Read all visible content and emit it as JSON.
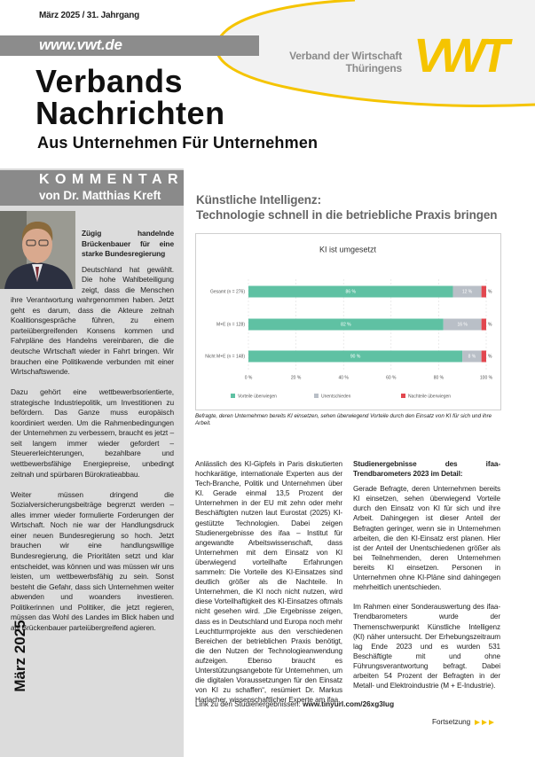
{
  "header": {
    "issue": "März 2025 / 31. Jahrgang",
    "url": "www.vwt.de",
    "title_line1": "Verbands",
    "title_line2": "Nachrichten",
    "subtitle": "Aus Unternehmen Für Unternehmen",
    "org_line1": "Verband der Wirtschaft",
    "org_line2": "Thüringens",
    "logo": "VWT"
  },
  "commentary": {
    "label": "KOMMENTAR",
    "author": "von Dr. Matthias Kreft",
    "headline": "Zügig handelnde Brückenbauer für eine starke Bundesregierung",
    "paragraphs": [
      "Deutschland hat gewählt. Die hohe Wahlbeteiligung zeigt, dass die Menschen ihre Verantwortung wahrgenommen haben. Jetzt geht es darum, dass die Akteure zeitnah Koalitionsgespräche führen, zu einem parteiübergreifenden Konsens kommen und Fahrpläne des Handelns vereinbaren, die die deutsche Wirtschaft wieder in Fahrt bringen. Wir brauchen eine Politikwende verbunden mit einer Wirtschaftswende.",
      "Dazu gehört eine wettbewerbsorientierte, strategische Industriepolitik, um Investitionen zu befördern. Das Ganze muss europäisch koordiniert werden. Um die Rahmenbedingungen der Unternehmen zu verbessern, braucht es jetzt – seit langem immer wieder gefordert – Steuererleichterungen, bezahlbare und wettbewerbsfähige Energiepreise, unbedingt zeitnah und spürbaren Bürokratieabbau.",
      "Weiter müssen dringend die Sozialversicherungsbeiträge begrenzt werden – alles immer wieder formulierte Forderungen der Wirtschaft. Noch nie war der Handlungsdruck einer neuen Bundesregierung so hoch. Jetzt brauchen wir eine handlungswillige Bundesregierung, die Prioritäten setzt und klar entscheidet, was können und was müssen wir uns leisten, um wettbewerbsfähig zu sein. Sonst besteht die Gefahr, dass sich Unternehmen weiter abwenden und woanders investieren. Politikerinnen und Politiker, die jetzt regieren, müssen das Wohl des Landes im Blick haben und als Brückenbauer parteiübergreifend agieren."
    ],
    "side_date": "März 2025"
  },
  "article": {
    "title_line1": "Künstliche Intelligenz:",
    "title_line2": "Technologie schnell in die betriebliche Praxis bringen",
    "caption": "Befragte, deren Unternehmen bereits KI einsetzen, sehen überwiegend Vorteile durch den Einsatz von KI für sich und ihre Arbeit.",
    "column1": [
      "Anlässlich des KI-Gipfels in Paris diskutierten hochkarätige, internationale Experten aus der Tech-Branche, Politik und Unternehmen über KI. Gerade einmal 13,5 Prozent der Unternehmen in der EU mit zehn oder mehr Beschäftigten nutzen laut Eurostat (2025) KI-gestützte Technologien. Dabei zeigen Studienergebnisse des ifaa – Institut für angewandte Arbeitswissenschaft, dass Unternehmen mit dem Einsatz von KI überwiegend vorteilhafte Erfahrungen sammeln: Die Vorteile des KI-Einsatzes sind deutlich größer als die Nachteile. In Unternehmen, die KI noch nicht nutzen, wird diese Vorteilhaftigkeit des KI-Einsatzes oftmals nicht gesehen wird. „Die Ergebnisse zeigen, dass es in Deutschland und Europa noch mehr Leuchtturmprojekte aus den verschiedenen Bereichen der betrieblichen Praxis benötigt, die den Nutzen der Technologieanwendung aufzeigen. Ebenso braucht es Unterstützungsangebote für Unternehmen, um die digitalen Voraussetzungen für den Einsatz von KI zu schaffen“, resümiert Dr. Markus Harlacher, wissenschaftlicher Experte am ifaa."
    ],
    "column2_heading": "Studienergebnisse des ifaa-Trendbarometers 2023 im Detail:",
    "column2": [
      "Gerade Befragte, deren Unternehmen bereits KI einsetzen, sehen überwiegend Vorteile durch den Einsatz von KI für sich und ihre Arbeit. Dahingegen ist dieser Anteil der Befragten geringer, wenn sie in Unternehmen arbeiten, die den KI-Einsatz erst planen. Hier ist der Anteil der Unentschiedenen größer als bei Teilnehmenden, deren Unternehmen bereits KI einsetzen. Personen in Unternehmen ohne KI-Pläne sind dahingegen mehrheitlich unentschieden.",
      "Im Rahmen einer Sonderauswertung des ifaa-Trendbarometers wurde der Themenschwerpunkt Künstliche Intelligenz (KI) näher untersucht. Der Erhebungszeitraum lag Ende 2023 und es wurden 531 Beschäftigte mit und ohne Führungsverantwortung befragt. Dabei arbeiten 54 Prozent der Befragten in der Metall- und Elektroindustrie (M + E-Industrie)."
    ],
    "link_label": "Link zu den Studienergebnissen:",
    "link_url": "www.tinyurl.com/26xg3lug",
    "continued": "Fortsetzung"
  },
  "chart_data": {
    "type": "stacked-bar-horizontal",
    "title": "KI ist umgesetzt",
    "categories": [
      "Gesamt (n = 276)",
      "M+E (n = 128)",
      "Nicht M+E (n = 148)"
    ],
    "series": [
      {
        "name": "Vorteile überwiegen",
        "color": "#5fc1a3",
        "values": [
          86,
          82,
          90
        ],
        "value_labels": [
          "86 %",
          "82 %",
          "90 %"
        ]
      },
      {
        "name": "Unentschieden",
        "color": "#b9bfc7",
        "values": [
          12,
          16,
          8
        ],
        "value_labels": [
          "12 %",
          "16 %",
          "8 %"
        ]
      },
      {
        "name": "Nachteile überwiegen",
        "color": "#e2474f",
        "values": [
          2,
          2,
          2
        ],
        "value_labels": [
          "%",
          "%",
          "%"
        ]
      }
    ],
    "xlim": [
      0,
      100
    ],
    "xticks": [
      {
        "value": 0,
        "label": "0 %"
      },
      {
        "value": 20,
        "label": "20 %"
      },
      {
        "value": 40,
        "label": "40 %"
      },
      {
        "value": 60,
        "label": "60 %"
      },
      {
        "value": 80,
        "label": "80 %"
      },
      {
        "value": 100,
        "label": "100 %"
      }
    ],
    "grid": true
  }
}
